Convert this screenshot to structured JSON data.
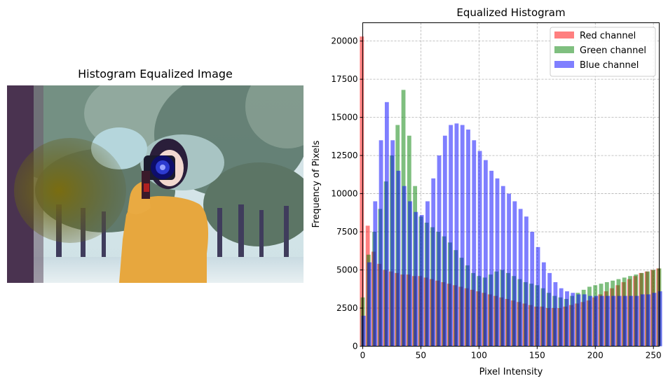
{
  "left_panel": {
    "title": "Histogram Equalized Image"
  },
  "chart_data": {
    "type": "bar",
    "title": "Equalized Histogram",
    "xlabel": "Pixel Intensity",
    "ylabel": "Frequency of Pixels",
    "xlim": [
      0,
      255
    ],
    "ylim": [
      0,
      21200
    ],
    "x_ticks": [
      0,
      50,
      100,
      150,
      200,
      250
    ],
    "y_ticks": [
      0,
      2500,
      5000,
      7500,
      10000,
      12500,
      15000,
      17500,
      20000
    ],
    "grid": true,
    "legend_position": "top-right",
    "x": [
      0,
      5,
      10,
      15,
      20,
      25,
      30,
      35,
      40,
      45,
      50,
      55,
      60,
      65,
      70,
      75,
      80,
      85,
      90,
      95,
      100,
      105,
      110,
      115,
      120,
      125,
      130,
      135,
      140,
      145,
      150,
      155,
      160,
      165,
      170,
      175,
      180,
      185,
      190,
      195,
      200,
      205,
      210,
      215,
      220,
      225,
      230,
      235,
      240,
      245,
      250,
      255
    ],
    "series": [
      {
        "name": "Red channel",
        "color": "#ff0000",
        "values": [
          20300,
          7900,
          6200,
          5400,
          5000,
          4900,
          4800,
          4700,
          4700,
          4600,
          4600,
          4500,
          4400,
          4300,
          4200,
          4100,
          4000,
          3900,
          3800,
          3700,
          3600,
          3500,
          3400,
          3300,
          3200,
          3100,
          3000,
          2900,
          2800,
          2700,
          2600,
          2600,
          2500,
          2500,
          2500,
          2600,
          2700,
          2800,
          2900,
          3000,
          3200,
          3400,
          3600,
          3800,
          4000,
          4200,
          4400,
          4600,
          4800,
          4900,
          5000,
          5100
        ]
      },
      {
        "name": "Green channel",
        "color": "#008000",
        "values": [
          3200,
          6000,
          7500,
          9000,
          10800,
          12500,
          14500,
          16800,
          13800,
          10500,
          8500,
          8100,
          7800,
          7500,
          7200,
          6800,
          6300,
          5800,
          5300,
          4800,
          4600,
          4500,
          4700,
          4900,
          5000,
          4800,
          4600,
          4400,
          4200,
          4100,
          4000,
          3800,
          3500,
          3300,
          3200,
          3100,
          3300,
          3500,
          3700,
          3900,
          4000,
          4100,
          4200,
          4300,
          4400,
          4500,
          4600,
          4700,
          4800,
          4900,
          5000,
          5100
        ]
      },
      {
        "name": "Blue channel",
        "color": "#0000ff",
        "values": [
          2000,
          5500,
          9500,
          13500,
          16000,
          13500,
          11500,
          10500,
          9500,
          8800,
          8600,
          9500,
          11000,
          12500,
          13800,
          14500,
          14600,
          14500,
          14200,
          13500,
          12800,
          12200,
          11500,
          11000,
          10500,
          10000,
          9500,
          9000,
          8500,
          7500,
          6500,
          5500,
          4800,
          4200,
          3800,
          3600,
          3500,
          3400,
          3400,
          3300,
          3300,
          3300,
          3300,
          3300,
          3300,
          3300,
          3300,
          3300,
          3400,
          3400,
          3500,
          3600
        ]
      }
    ]
  }
}
